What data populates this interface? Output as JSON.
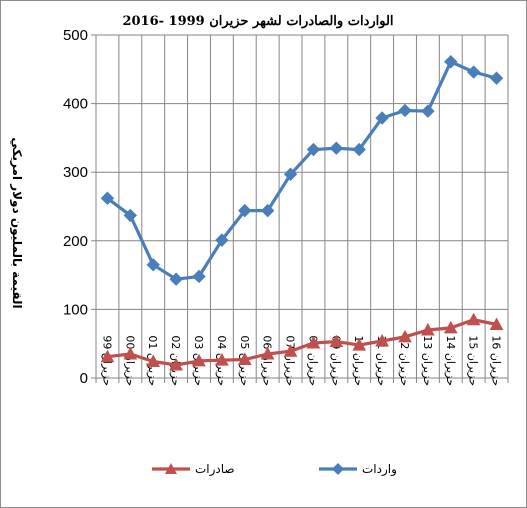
{
  "chart_data": {
    "type": "line",
    "title": "الواردات والصادرات لشهر حزيران 1999 -2016",
    "ylabel": "القيمة بالمليون دولار امريكي",
    "xlabel": "",
    "ylim": [
      0,
      500
    ],
    "yticks": [
      0,
      100,
      200,
      300,
      400,
      500
    ],
    "grid": true,
    "legend_position": "bottom",
    "categories": [
      "حزيران 99",
      "حزيران 00",
      "حزيران 01",
      "حزيران 02",
      "حزيران 03",
      "حزيران 04",
      "حزيران 05",
      "حزيران 06",
      "حزيران 07",
      "حزيران 08",
      "حزيران 09",
      "حزيران 10",
      "حزيران 11",
      "حزيران 12",
      "حزيران 13",
      "حزيران 14",
      "حزيران 15",
      "حزيران 16"
    ],
    "series": [
      {
        "name": "واردات",
        "color": "#4a7ebb",
        "marker": "diamond",
        "values": [
          262,
          237,
          165,
          144,
          148,
          201,
          244,
          244,
          297,
          333,
          335,
          333,
          379,
          390,
          389,
          461,
          446,
          437
        ]
      },
      {
        "name": "صادرات",
        "color": "#c0504d",
        "marker": "triangle",
        "values": [
          31,
          35,
          24,
          19,
          25,
          26,
          27,
          35,
          39,
          51,
          53,
          48,
          54,
          60,
          70,
          73,
          85,
          78
        ]
      }
    ]
  }
}
